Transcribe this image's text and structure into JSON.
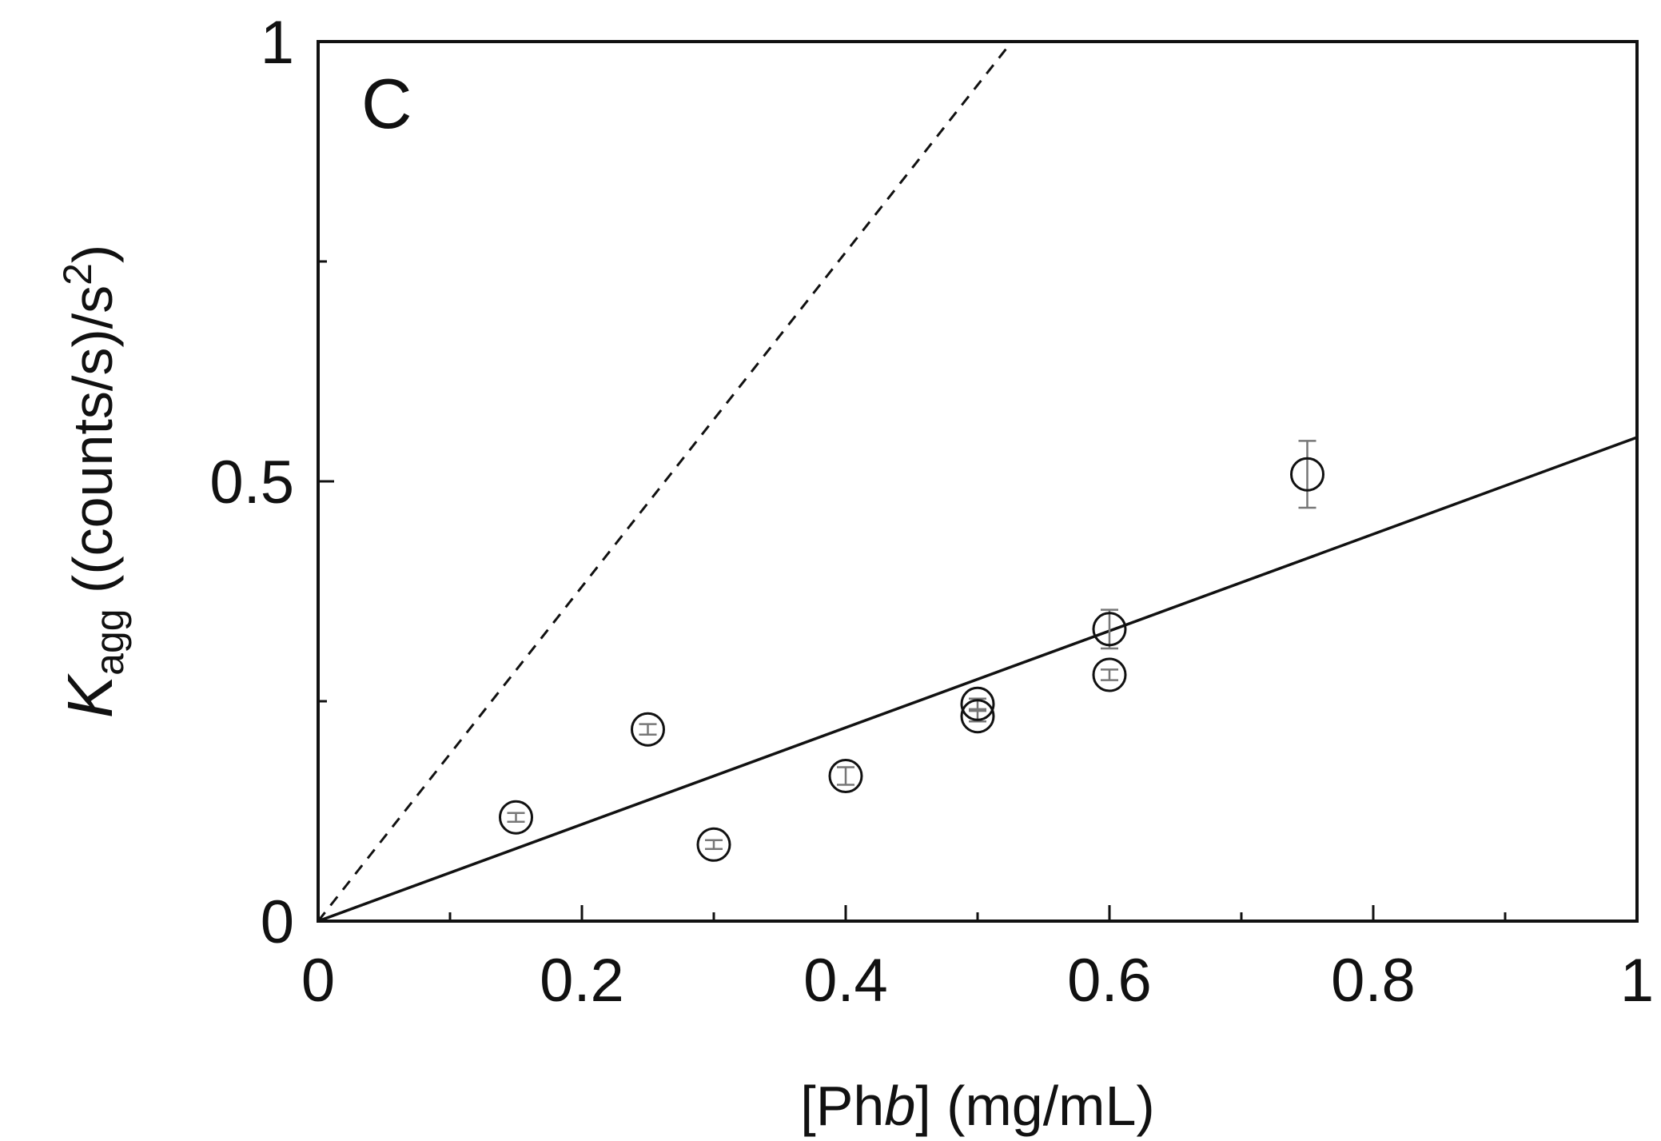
{
  "chart_data": {
    "type": "scatter",
    "panel_label": "C",
    "xlabel": {
      "prefix": "[Ph",
      "italic": "b",
      "suffix": "] (mg/mL)"
    },
    "ylabel": {
      "symbol": "K",
      "subscript": "agg",
      "units": " ((counts/s)/s",
      "superscript": "2",
      "close": ")"
    },
    "xlim": [
      0,
      1
    ],
    "ylim": [
      0,
      1
    ],
    "x_ticks": [
      {
        "value": 0,
        "label": "0"
      },
      {
        "value": 0.2,
        "label": "0.2"
      },
      {
        "value": 0.4,
        "label": "0.4"
      },
      {
        "value": 0.6,
        "label": "0.6"
      },
      {
        "value": 0.8,
        "label": "0.8"
      },
      {
        "value": 1,
        "label": "1"
      }
    ],
    "x_minor_ticks": [
      0.1,
      0.3,
      0.5,
      0.7,
      0.9
    ],
    "y_ticks": [
      {
        "value": 0,
        "label": "0"
      },
      {
        "value": 0.5,
        "label": "0.5"
      },
      {
        "value": 1,
        "label": "1"
      }
    ],
    "y_minor_ticks": [
      0.25,
      0.75
    ],
    "points": [
      {
        "x": 0.15,
        "y": 0.118,
        "err": 0.005
      },
      {
        "x": 0.25,
        "y": 0.218,
        "err": 0.006
      },
      {
        "x": 0.3,
        "y": 0.087,
        "err": 0.005
      },
      {
        "x": 0.4,
        "y": 0.165,
        "err": 0.01
      },
      {
        "x": 0.5,
        "y": 0.233,
        "err": 0.006
      },
      {
        "x": 0.5,
        "y": 0.247,
        "err": 0.006
      },
      {
        "x": 0.6,
        "y": 0.28,
        "err": 0.006
      },
      {
        "x": 0.6,
        "y": 0.332,
        "err": 0.022
      },
      {
        "x": 0.75,
        "y": 0.508,
        "err": 0.038
      }
    ],
    "fit_line": {
      "style": "solid",
      "x": [
        0,
        1
      ],
      "y": [
        0,
        0.55
      ]
    },
    "reference_line": {
      "style": "dashed",
      "x": [
        0,
        0.526
      ],
      "y": [
        0,
        1
      ]
    }
  }
}
